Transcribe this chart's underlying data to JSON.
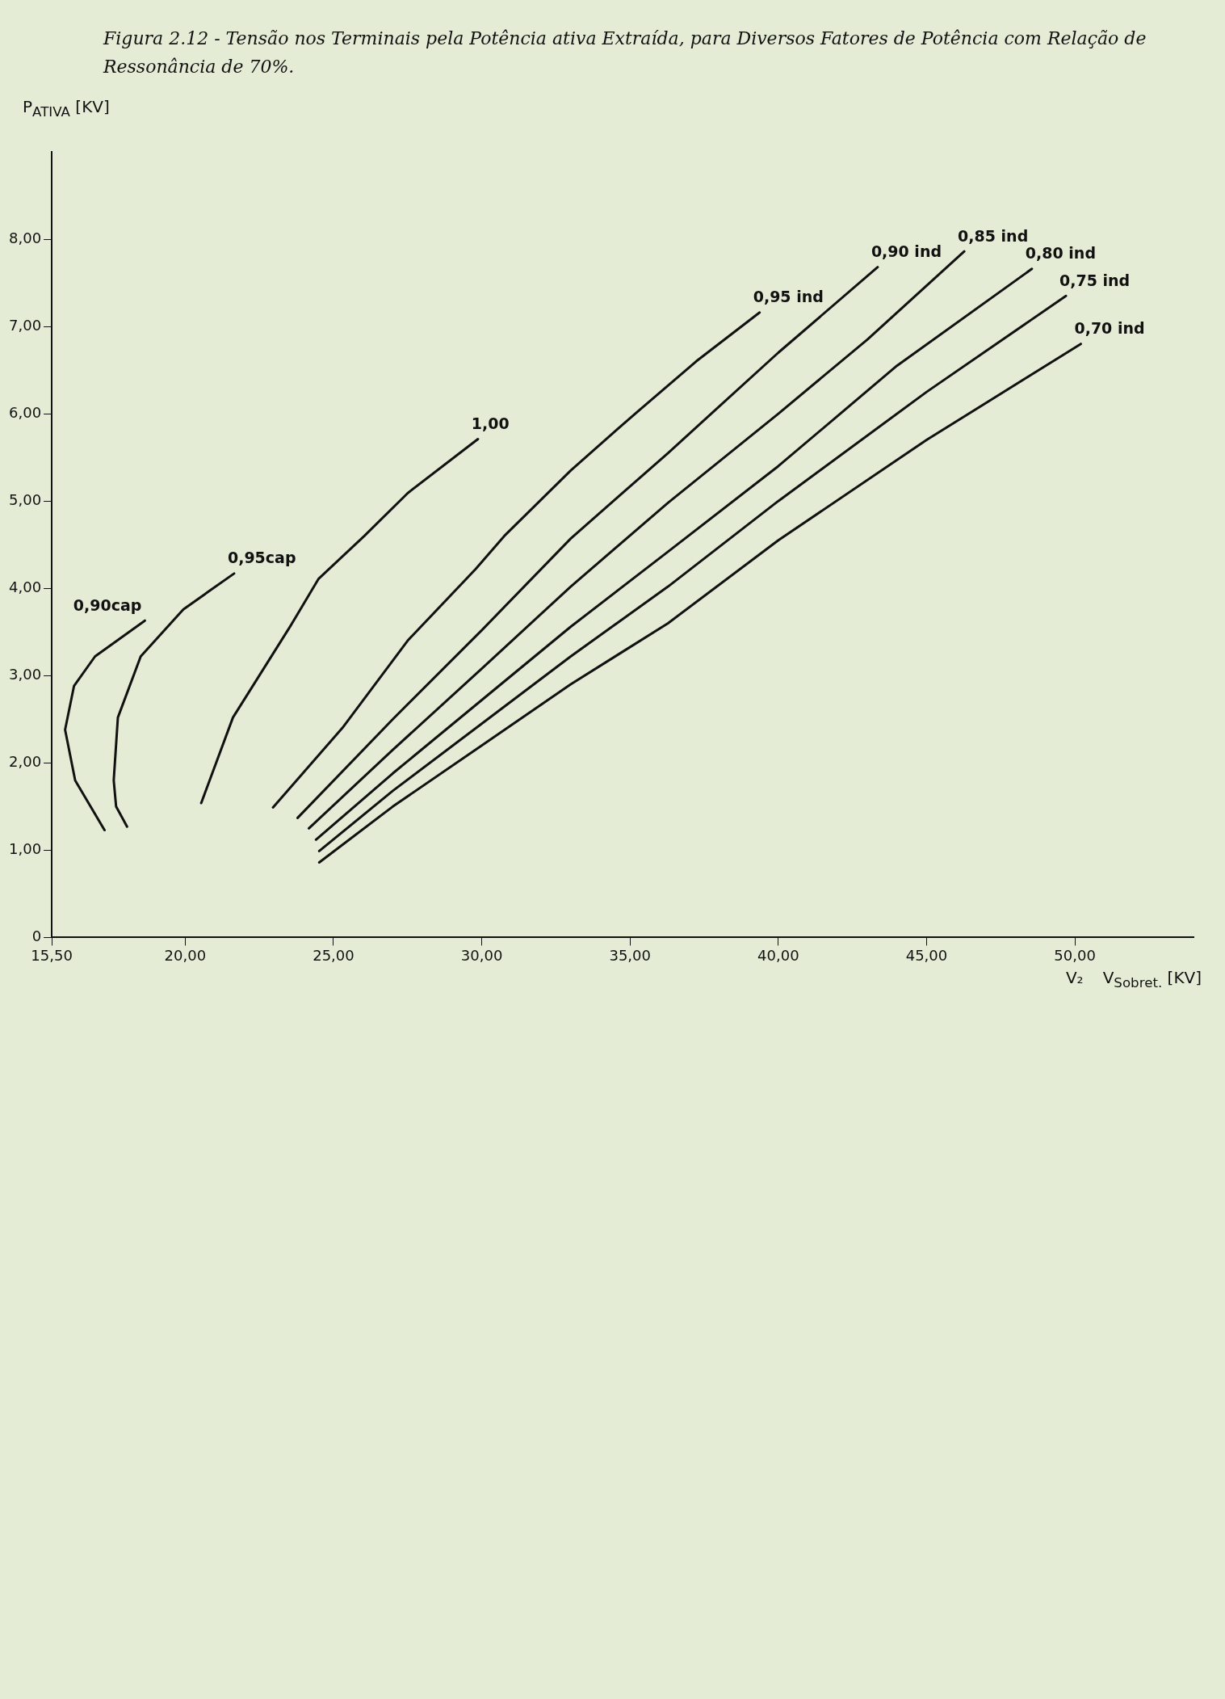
{
  "chart_data": {
    "type": "line",
    "title": "Figura 2.12 - Tensão nos Terminais pela Potência ativa Extraída, para Diversos Fatores de Potência com Relação de Ressonância de 70%.",
    "xlabel": "V$_{Sobret.}$ [KV]",
    "ylabel": "P$_{ATIVA}$ [KV]",
    "annotations": [
      "V₂"
    ],
    "xlim": [
      15.5,
      54
    ],
    "ylim": [
      0,
      9
    ],
    "xticks": [
      {
        "value": 15.5,
        "label": "15,50"
      },
      {
        "value": 20,
        "label": "20,00"
      },
      {
        "value": 25,
        "label": "25,00"
      },
      {
        "value": 30,
        "label": "30,00"
      },
      {
        "value": 35,
        "label": "35,00"
      },
      {
        "value": 40,
        "label": "40,00"
      },
      {
        "value": 45,
        "label": "45,00"
      },
      {
        "value": 50,
        "label": "50,00"
      }
    ],
    "yticks": [
      0,
      {
        "value": 1,
        "label": "1,00"
      },
      {
        "value": 2,
        "label": "2,00"
      },
      {
        "value": 3,
        "label": "3,00"
      },
      {
        "value": 4,
        "label": "4,00"
      },
      {
        "value": 5,
        "label": "5,00"
      },
      {
        "value": 6,
        "label": "6,00"
      },
      {
        "value": 7,
        "label": "7,00"
      },
      {
        "value": 8,
        "label": "8,00"
      }
    ],
    "grid": false,
    "legend": false,
    "marker": "none",
    "line_style": "solid",
    "series": [
      {
        "name": "0,90cap",
        "color": "#111111",
        "x": [
          18.64,
          16.96,
          16.25,
          15.95,
          16.29,
          17.28
        ],
        "values": [
          3.63,
          3.22,
          2.88,
          2.38,
          1.8,
          1.23
        ]
      },
      {
        "name": "0,95cap",
        "color": "#111111",
        "x": [
          21.65,
          19.94,
          18.5,
          17.73,
          17.59,
          17.67,
          18.04
        ],
        "values": [
          4.17,
          3.76,
          3.22,
          2.52,
          1.8,
          1.5,
          1.27
        ]
      },
      {
        "name": "1,00",
        "color": "#111111",
        "x": [
          20.54,
          21.61,
          23.57,
          24.5,
          26.04,
          27.5,
          29.87
        ],
        "values": [
          1.54,
          2.52,
          3.58,
          4.11,
          4.6,
          5.09,
          5.71
        ]
      },
      {
        "name": "0,95 ind",
        "color": "#111111",
        "x": [
          22.96,
          25.3,
          27.5,
          29.79,
          30.76,
          33,
          35,
          37.23,
          39.37
        ],
        "values": [
          1.49,
          2.4,
          3.4,
          4.22,
          4.6,
          5.35,
          5.95,
          6.6,
          7.16
        ]
      },
      {
        "name": "0,90 ind",
        "color": "#111111",
        "x": [
          23.79,
          27,
          30,
          33,
          36.28,
          40,
          43.35
        ],
        "values": [
          1.37,
          2.5,
          3.52,
          4.57,
          5.55,
          6.7,
          7.68
        ]
      },
      {
        "name": "0,85 ind",
        "color": "#111111",
        "x": [
          24.17,
          27,
          30,
          33,
          36.28,
          40,
          43,
          46.27
        ],
        "values": [
          1.25,
          2.15,
          3.08,
          4.02,
          4.98,
          6.0,
          6.85,
          7.86
        ]
      },
      {
        "name": "0,80 ind",
        "color": "#111111",
        "x": [
          24.41,
          27,
          30,
          33,
          36.28,
          40,
          44,
          48.55
        ],
        "values": [
          1.12,
          1.88,
          2.72,
          3.56,
          4.42,
          5.4,
          6.55,
          7.66
        ]
      },
      {
        "name": "0,75 ind",
        "color": "#111111",
        "x": [
          24.52,
          27,
          30,
          33,
          36.28,
          40,
          45,
          49.7
        ],
        "values": [
          0.99,
          1.68,
          2.45,
          3.22,
          4.02,
          5.0,
          6.25,
          7.35
        ]
      },
      {
        "name": "0,70 ind",
        "color": "#111111",
        "x": [
          24.52,
          27,
          30,
          33,
          36.28,
          40,
          45,
          50.2
        ],
        "values": [
          0.86,
          1.5,
          2.2,
          2.9,
          3.6,
          4.55,
          5.7,
          6.8
        ]
      }
    ]
  }
}
